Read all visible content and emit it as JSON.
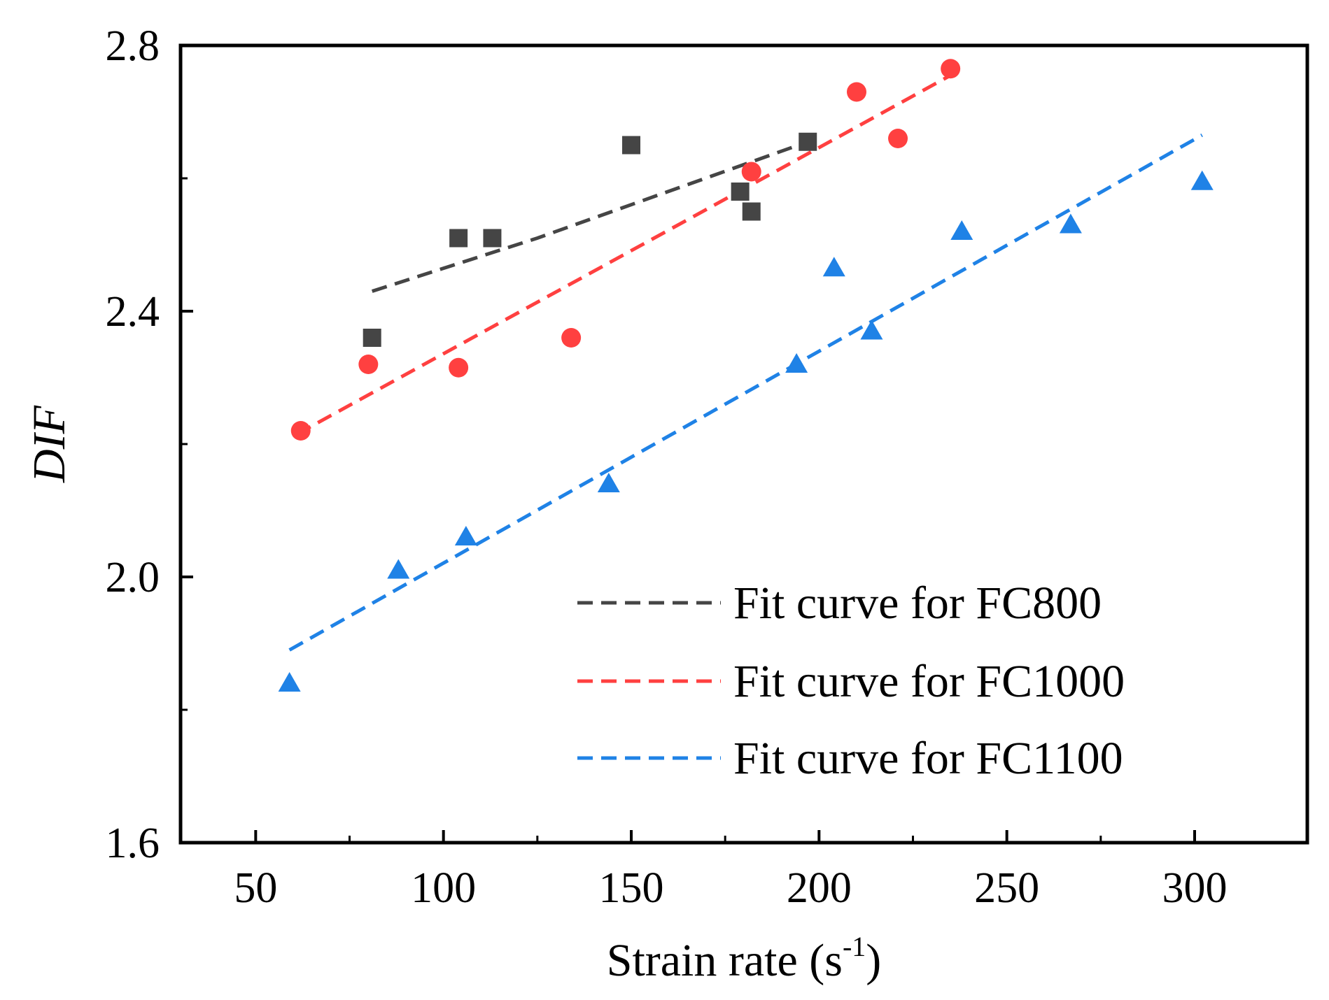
{
  "chart_data": {
    "type": "scatter",
    "title": "",
    "xlabel": "Strain rate (s",
    "xlabel_sup": "-1",
    "xlabel_close": ")",
    "ylabel": "DIF",
    "xlim": [
      30,
      330
    ],
    "ylim": [
      1.6,
      2.8
    ],
    "x_ticks": [
      50,
      100,
      150,
      200,
      250,
      300
    ],
    "x_tick_labels": [
      "50",
      "100",
      "150",
      "200",
      "250",
      "300"
    ],
    "x_minor_ticks": [
      75,
      125,
      175,
      225,
      275
    ],
    "y_ticks": [
      1.6,
      2.0,
      2.4,
      2.8
    ],
    "y_tick_labels": [
      "1.6",
      "2.0",
      "2.4",
      "2.8"
    ],
    "y_minor_ticks": [
      1.8,
      2.2,
      2.6
    ],
    "grid": false,
    "legend_position": "bottom-right",
    "series": [
      {
        "name": "FC800",
        "marker": "square",
        "color": "#454545",
        "points": [
          [
            81,
            2.36
          ],
          [
            104,
            2.51
          ],
          [
            113,
            2.51
          ],
          [
            150,
            2.65
          ],
          [
            179,
            2.58
          ],
          [
            182,
            2.55
          ],
          [
            197,
            2.655
          ]
        ],
        "fit_name": "Fit curve for FC800",
        "fit": [
          [
            81,
            2.43
          ],
          [
            125,
            2.51
          ],
          [
            197,
            2.655
          ]
        ]
      },
      {
        "name": "FC1000",
        "marker": "circle",
        "color": "#ff4040",
        "points": [
          [
            62,
            2.22
          ],
          [
            80,
            2.32
          ],
          [
            104,
            2.315
          ],
          [
            134,
            2.36
          ],
          [
            182,
            2.61
          ],
          [
            210,
            2.73
          ],
          [
            221,
            2.66
          ],
          [
            235,
            2.765
          ]
        ],
        "fit_name": "Fit curve for FC1000",
        "fit": [
          [
            61,
            2.215
          ],
          [
            235,
            2.755
          ]
        ]
      },
      {
        "name": "FC1100",
        "marker": "triangle",
        "color": "#1f82e6",
        "points": [
          [
            59,
            1.84
          ],
          [
            88,
            2.01
          ],
          [
            106,
            2.06
          ],
          [
            144,
            2.14
          ],
          [
            194,
            2.32
          ],
          [
            204,
            2.465
          ],
          [
            214,
            2.37
          ],
          [
            238,
            2.52
          ],
          [
            267,
            2.53
          ],
          [
            302,
            2.595
          ]
        ],
        "fit_name": "Fit curve for FC1100",
        "fit": [
          [
            59,
            1.89
          ],
          [
            302,
            2.665
          ]
        ]
      }
    ]
  }
}
